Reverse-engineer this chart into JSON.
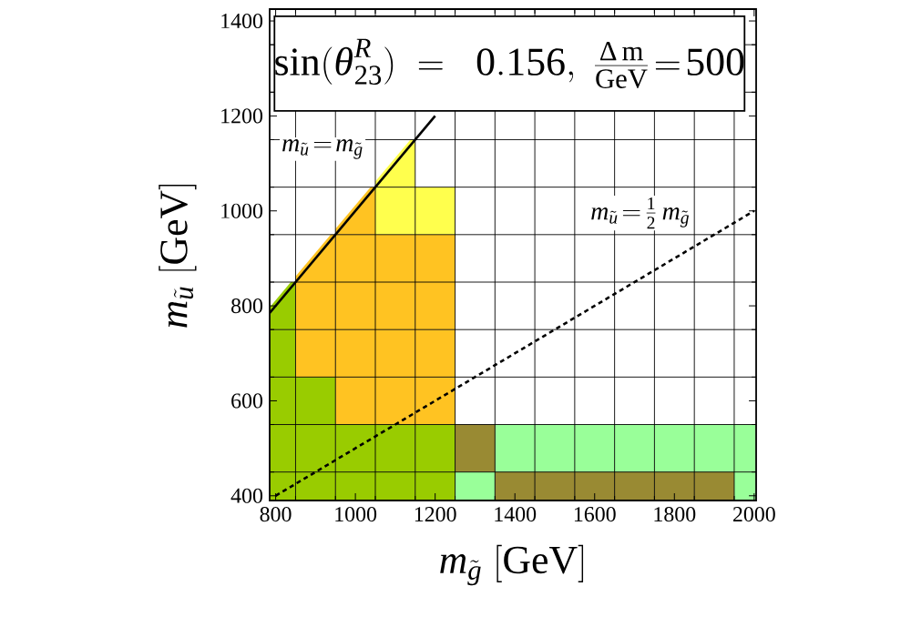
{
  "chart_data": {
    "type": "scatter",
    "title": "\\sin(\\theta^{R}_{23})\\;=\\;\\;0.156,\\;\\frac{\\Delta\\,\\mathrm{m}}{\\mathrm{GeV}}\\!=\\!500",
    "xlabel": "m_{\\tilde g}\\;[\\mathrm{GeV}]",
    "ylabel": "m_{\\tilde u}\\;[\\mathrm{GeV}]",
    "xlim": [
      785,
      2005
    ],
    "ylim": [
      390,
      1425
    ],
    "xticks": [
      800,
      1000,
      1200,
      1400,
      1600,
      1800,
      2000,
      {
        "value": 850,
        "label": null
      },
      {
        "value": 950,
        "label": null
      },
      {
        "value": 1050,
        "label": null
      },
      {
        "value": 1150,
        "label": null
      },
      {
        "value": 1250,
        "label": null
      },
      {
        "value": 1350,
        "label": null
      },
      {
        "value": 1450,
        "label": null
      },
      {
        "value": 1550,
        "label": null
      },
      {
        "value": 1650,
        "label": null
      },
      {
        "value": 1750,
        "label": null
      },
      {
        "value": 1850,
        "label": null
      },
      {
        "value": 1950,
        "label": null
      }
    ],
    "yticks": [
      400,
      600,
      800,
      1000,
      1200,
      1400,
      {
        "value": 450,
        "label": null
      },
      {
        "value": 550,
        "label": null
      },
      {
        "value": 650,
        "label": null
      },
      {
        "value": 750,
        "label": null
      },
      {
        "value": 850,
        "label": null
      },
      {
        "value": 950,
        "label": null
      },
      {
        "value": 1050,
        "label": null
      },
      {
        "value": 1150,
        "label": null
      },
      {
        "value": 1250,
        "label": null
      },
      {
        "value": 1350,
        "label": null
      }
    ],
    "grid": true,
    "marker": "square",
    "series": [
      {
        "color": "#99cc00",
        "x": [
          800,
          900,
          1000,
          1100,
          1200,
          800,
          900,
          1000,
          1100,
          1200,
          800,
          900,
          800,
          800
        ],
        "values": [
          400,
          400,
          400,
          400,
          400,
          500,
          500,
          500,
          500,
          500,
          600,
          600,
          700,
          800
        ]
      },
      {
        "color": "#ffc322",
        "x": [
          1000,
          1100,
          1200,
          900,
          1000,
          1100,
          1200,
          900,
          1000,
          1100,
          1200,
          900,
          1000,
          1100,
          1200,
          1000
        ],
        "values": [
          600,
          600,
          600,
          700,
          700,
          700,
          700,
          800,
          800,
          800,
          800,
          900,
          900,
          900,
          900,
          1000
        ]
      },
      {
        "color": "#ffff4d",
        "x": [
          1100,
          1200,
          1100
        ],
        "values": [
          1000,
          1000,
          1100
        ]
      },
      {
        "color": "#99ff99",
        "x": [
          1300,
          2000,
          1400,
          1500,
          1600,
          1700,
          1800,
          1900,
          2000
        ],
        "values": [
          400,
          400,
          500,
          500,
          500,
          500,
          500,
          500,
          500
        ]
      },
      {
        "color": "#998a33",
        "x": [
          1400,
          1500,
          1600,
          1700,
          1800,
          1900,
          1300
        ],
        "values": [
          400,
          400,
          400,
          400,
          400,
          400,
          500
        ]
      },
      {
        "type": "line",
        "color": "#000000",
        "line_style": "solid",
        "marker": "none",
        "x": [
          785,
          1200
        ],
        "values": [
          785,
          1200
        ]
      },
      {
        "type": "line",
        "color": "#000000",
        "line_style": "dashed",
        "marker": "none",
        "x": [
          800,
          2000
        ],
        "values": [
          400,
          1000
        ]
      }
    ],
    "annotations": [
      "m_{\\tilde u}\\!=\\!m_{\\tilde g}",
      "m_{\\tilde u}\\!=\\!\\frac{1}{2}\\,m_{\\tilde g}"
    ]
  }
}
